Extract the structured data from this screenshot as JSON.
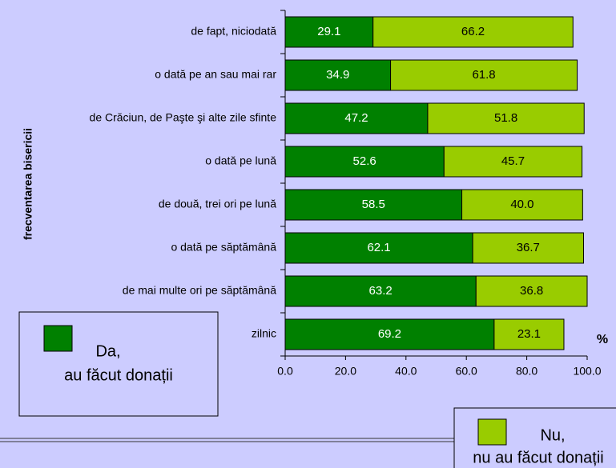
{
  "chart_data": {
    "type": "bar",
    "orientation": "horizontal",
    "stacked": true,
    "y_axis_label": "frecventarea bisericii",
    "x_axis_unit": "%",
    "categories": [
      "de fapt, niciodată",
      "o dată pe an sau mai rar",
      "de Crăciun, de Paşte şi alte zile sfinte",
      "o dată pe lună",
      "de două, trei ori pe lună",
      "o dată pe săptămână",
      "de mai multe ori pe săptămână",
      "zilnic"
    ],
    "series": [
      {
        "name": "Da,",
        "description": "au făcut donații",
        "color": "#008000",
        "label_color": "#ffffff",
        "values": [
          29.1,
          34.9,
          47.2,
          52.6,
          58.5,
          62.1,
          63.2,
          69.2
        ],
        "value_labels": [
          "29.1",
          "34.9",
          "47.2",
          "52.6",
          "58.5",
          "62.1",
          "63.2",
          "69.2"
        ]
      },
      {
        "name": "Nu,",
        "description": "nu au făcut donații",
        "color": "#99cc00",
        "label_color": "#000000",
        "values": [
          66.2,
          61.8,
          51.8,
          45.7,
          40.0,
          36.7,
          36.8,
          23.1
        ],
        "value_labels": [
          "66.2",
          "61.8",
          "51.8",
          "45.7",
          "40.0",
          "36.7",
          "36.8",
          "23.1"
        ]
      }
    ],
    "xlim": [
      0,
      100
    ],
    "xticks": [
      {
        "value": 0,
        "label": "0.0"
      },
      {
        "value": 20,
        "label": "20.0"
      },
      {
        "value": 40,
        "label": "40.0"
      },
      {
        "value": 60,
        "label": "60.0"
      },
      {
        "value": 80,
        "label": "80.0"
      },
      {
        "value": 100,
        "label": "100.0"
      }
    ]
  }
}
